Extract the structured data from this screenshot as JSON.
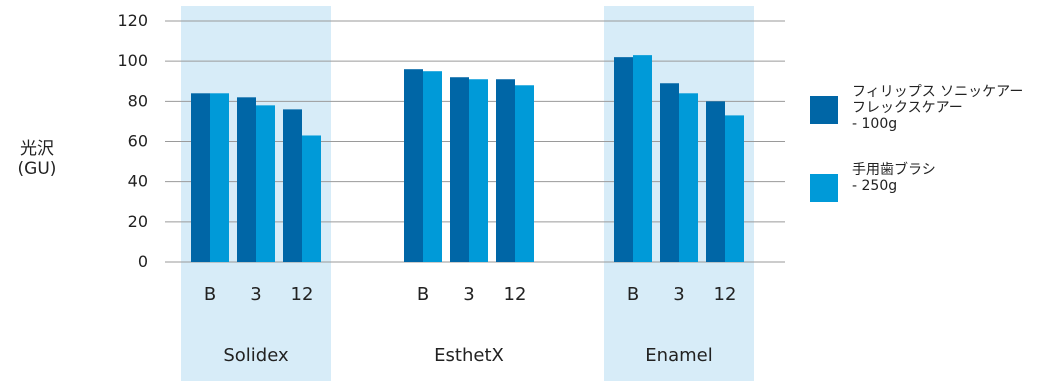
{
  "chart_data": {
    "type": "bar",
    "ylabel": "光沢\n(GU)",
    "ylim": [
      0,
      120
    ],
    "yticks": [
      0,
      20,
      40,
      60,
      80,
      100,
      120
    ],
    "grid": true,
    "legend_placement": "right",
    "groups": [
      {
        "name": "Solidex",
        "highlighted": true,
        "categories": [
          "B",
          "3",
          "12"
        ],
        "series_values": [
          [
            84,
            82,
            76
          ],
          [
            84,
            78,
            63
          ]
        ]
      },
      {
        "name": "EsthetX",
        "highlighted": false,
        "categories": [
          "B",
          "3",
          "12"
        ],
        "series_values": [
          [
            96,
            92,
            91
          ],
          [
            95,
            91,
            88
          ]
        ]
      },
      {
        "name": "Enamel",
        "highlighted": true,
        "categories": [
          "B",
          "3",
          "12"
        ],
        "series_values": [
          [
            102,
            89,
            80
          ],
          [
            103,
            84,
            73
          ]
        ]
      }
    ],
    "series": [
      {
        "name": "フィリップス ソニッケアー\nフレックスケアー\n- 100g",
        "color": "#0066a6"
      },
      {
        "name": "手用歯ブラシ\n- 250g",
        "color": "#009ad8"
      }
    ],
    "highlight_color": "#d7ecf8",
    "grid_color": "#9a9a9a"
  }
}
